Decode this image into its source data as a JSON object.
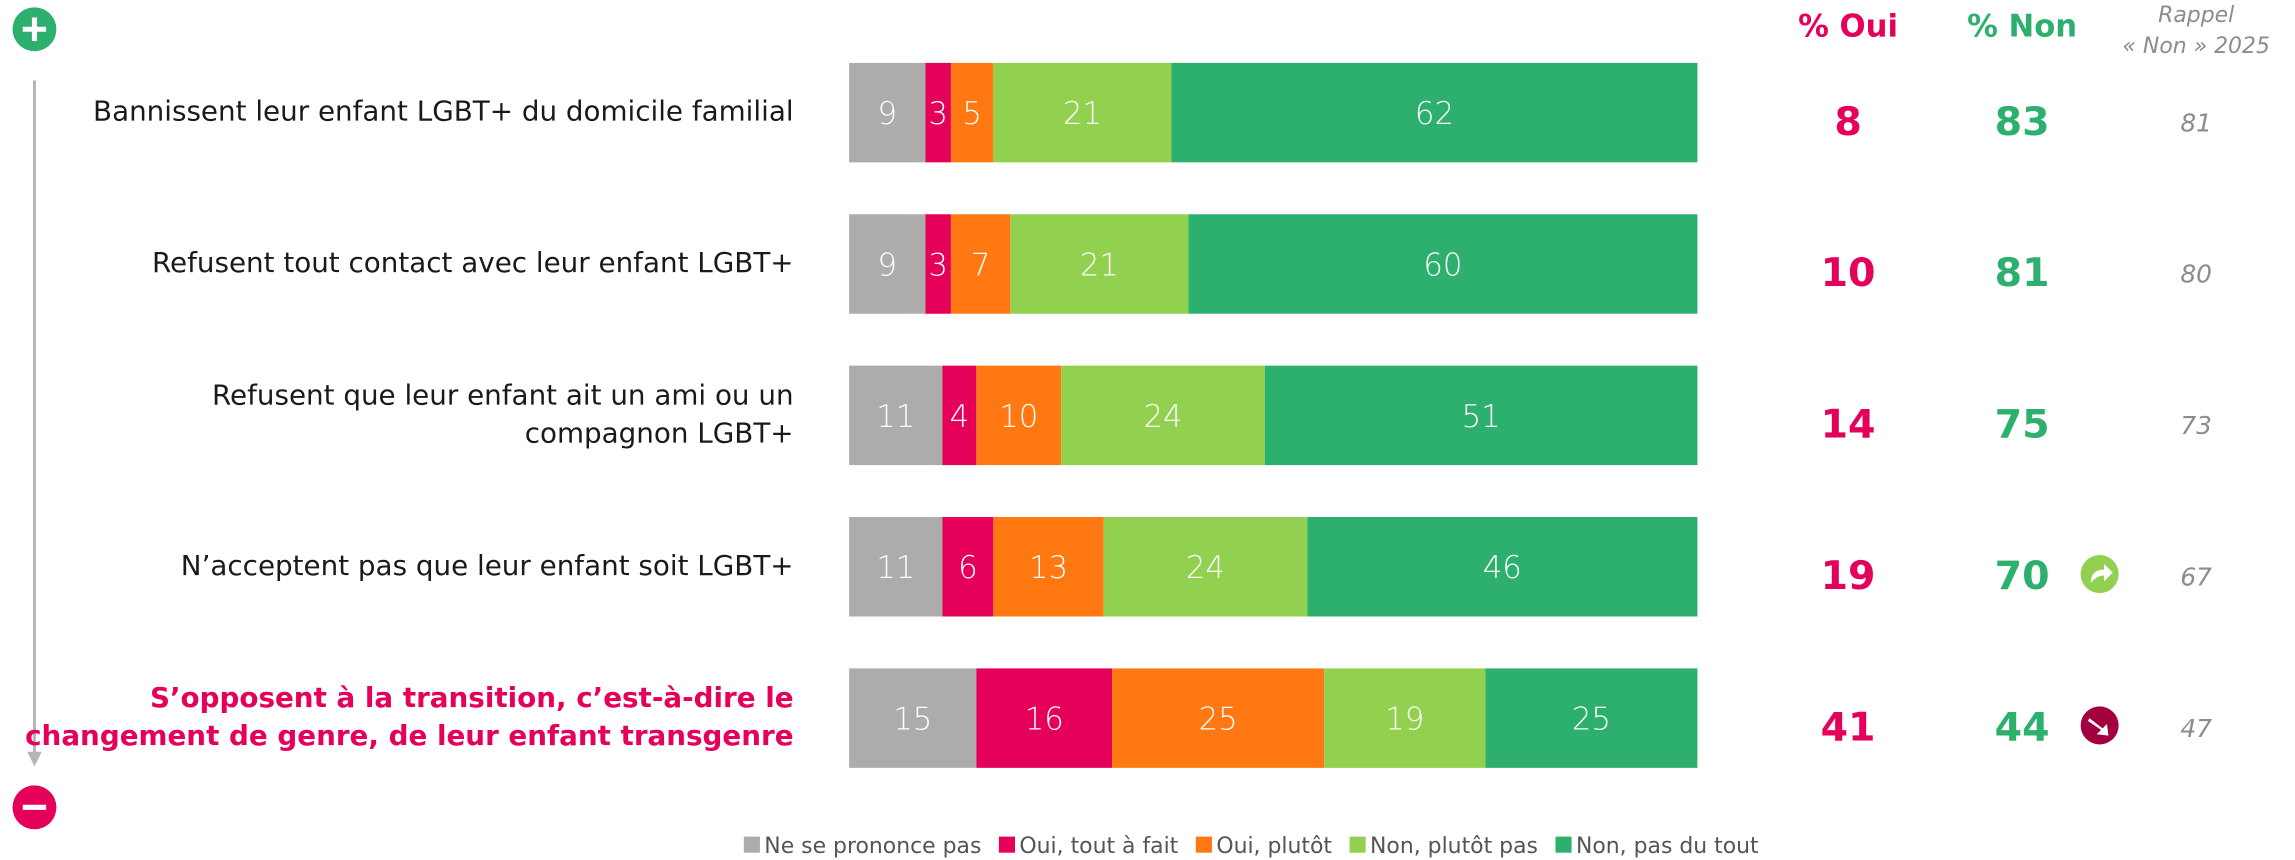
{
  "chart_data": {
    "type": "bar",
    "orientation": "horizontal",
    "stacked": true,
    "categories": [
      [
        "Bannissent leur enfant LGBT+ du domicile familial"
      ],
      [
        "Refusent tout contact avec leur enfant LGBT+"
      ],
      [
        "Refusent que leur enfant ait un ami ou un",
        "compagnon LGBT+"
      ],
      [
        "N’acceptent pas que leur enfant soit LGBT+"
      ],
      [
        "S’opposent à la transition, c’est-à-dire le",
        "changement de genre, de leur enfant transgenre"
      ]
    ],
    "highlight_category": 4,
    "highlight_color": "#e5005a",
    "series": [
      {
        "name": "Ne se prononce pas",
        "color": "#acacac",
        "values": [
          9,
          9,
          11,
          11,
          15
        ]
      },
      {
        "name": "Oui, tout à fait",
        "color": "#e5005a",
        "values": [
          3,
          3,
          4,
          6,
          16
        ]
      },
      {
        "name": "Oui, plutôt",
        "color": "#ff7812",
        "values": [
          5,
          7,
          10,
          13,
          25
        ]
      },
      {
        "name": "Non, plutôt pas",
        "color": "#92d050",
        "values": [
          21,
          21,
          24,
          24,
          19
        ]
      },
      {
        "name": "Non, pas du tout",
        "color": "#2daf6e",
        "values": [
          62,
          60,
          51,
          46,
          25
        ]
      }
    ],
    "columns": [
      {
        "header": [
          "% Oui"
        ],
        "color": "#e5005a",
        "values": [
          8,
          10,
          14,
          19,
          41
        ]
      },
      {
        "header": [
          "% Non"
        ],
        "color": "#2daf6e",
        "values": [
          83,
          81,
          75,
          70,
          44
        ]
      },
      {
        "header": [
          "Rappel",
          "« Non » 2025"
        ],
        "color": "#8c8c8c",
        "values": [
          81,
          80,
          73,
          67,
          47
        ]
      }
    ],
    "trend": [
      null,
      null,
      null,
      "up",
      "down"
    ]
  }
}
